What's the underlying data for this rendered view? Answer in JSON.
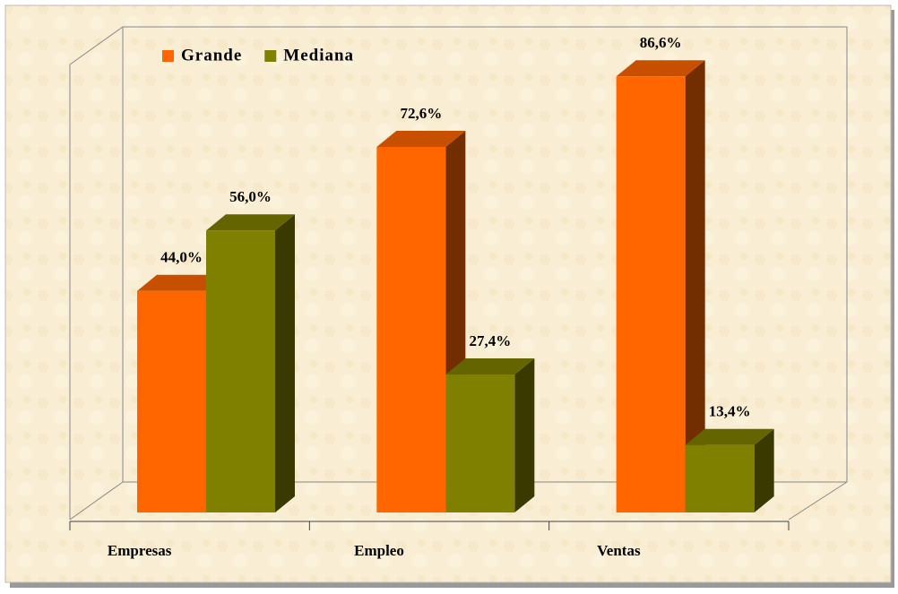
{
  "chart_data": {
    "type": "bar3d",
    "categories": [
      "Empresas",
      "Empleo",
      "Ventas"
    ],
    "series": [
      {
        "name": "Grande",
        "color": "#ff6600",
        "values": [
          44.0,
          72.6,
          86.6
        ],
        "value_labels": [
          "44,0%",
          "72,6%",
          "86,6%"
        ]
      },
      {
        "name": "Mediana",
        "color": "#808000",
        "values": [
          56.0,
          27.4,
          13.4
        ],
        "value_labels": [
          "56,0%",
          "27,4%",
          "13,4%"
        ]
      }
    ],
    "legend": "top-left"
  }
}
